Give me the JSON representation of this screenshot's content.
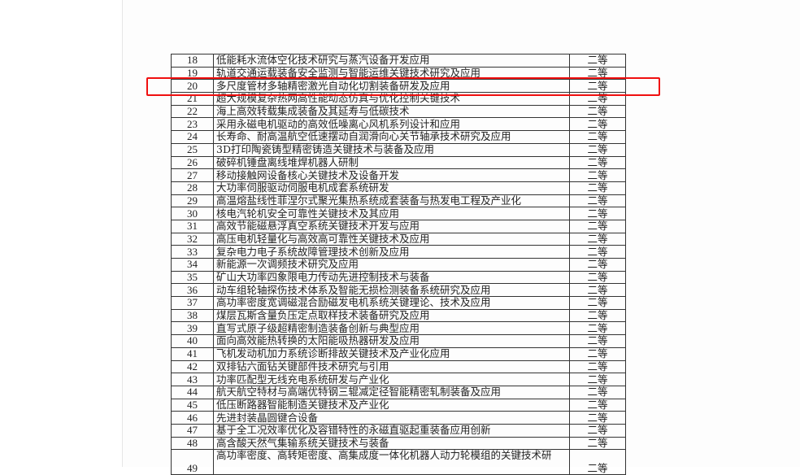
{
  "table": {
    "rows": [
      {
        "no": "18",
        "title": "低能耗水流体空化技术研究与蒸汽设备开发应用",
        "grade": "二等"
      },
      {
        "no": "19",
        "title": "轨道交通运载装备安全监测与智能运维关键技术研究及应用",
        "grade": "二等"
      },
      {
        "no": "20",
        "title": "多尺度管材多轴精密激光自动化切割装备研发及应用",
        "grade": "二等"
      },
      {
        "no": "21",
        "title": "超大规模复杂热网高性能动态仿真与优化控制关键技术",
        "grade": "二等"
      },
      {
        "no": "22",
        "title": "海上高效转载集成装备及其延寿与低碳技术",
        "grade": "二等"
      },
      {
        "no": "23",
        "title": "采用永磁电机驱动的高效低噪离心风机系列设计和应用",
        "grade": "二等"
      },
      {
        "no": "24",
        "title": "长寿命、耐高温航空低速摆动自润滑向心关节轴承技术研究及应用",
        "grade": "二等"
      },
      {
        "no": "25",
        "title": "3D打印陶瓷铸型精密铸造关键技术与装备及应用",
        "grade": "二等"
      },
      {
        "no": "26",
        "title": "破碎机锤盘离线堆焊机器人研制",
        "grade": "二等"
      },
      {
        "no": "27",
        "title": "移动接触网设备核心关键技术及设备开发",
        "grade": "二等"
      },
      {
        "no": "28",
        "title": "大功率伺服驱动伺服电机成套系统研发",
        "grade": "二等"
      },
      {
        "no": "29",
        "title": "高温熔盐线性菲涅尔式聚光集热系统成套装备与热发电工程及产业化",
        "grade": "二等"
      },
      {
        "no": "30",
        "title": "核电汽轮机安全可靠性关键技术及其应用",
        "grade": "二等"
      },
      {
        "no": "31",
        "title": "高效节能磁悬浮真空系统关键技术开发与应用",
        "grade": "二等"
      },
      {
        "no": "32",
        "title": "高压电机轻量化与高效高可靠性关键技术及应用",
        "grade": "二等"
      },
      {
        "no": "33",
        "title": "复杂电力电子系统故障管理技术创新及应用",
        "grade": "二等"
      },
      {
        "no": "34",
        "title": "新能源一次调频技术研究及应用",
        "grade": "二等"
      },
      {
        "no": "35",
        "title": "矿山大功率四象限电力传动先进控制技术与装备",
        "grade": "二等"
      },
      {
        "no": "36",
        "title": "动车组轮轴探伤技术体系及智能无损检测装备系统研究及应用",
        "grade": "二等"
      },
      {
        "no": "37",
        "title": "高功率密度宽调磁混合励磁发电机系统关键理论、技术及应用",
        "grade": "二等"
      },
      {
        "no": "38",
        "title": "煤层瓦斯含量负压定点取样技术装备研究及应用",
        "grade": "二等"
      },
      {
        "no": "39",
        "title": "直写式原子级超精密制造装备创新与典型应用",
        "grade": "二等"
      },
      {
        "no": "40",
        "title": "面向高效能热转换的太阳能吸热器研发及应用",
        "grade": "二等"
      },
      {
        "no": "41",
        "title": "飞机发动机加力系统诊断排故关键技术及产业化应用",
        "grade": "二等"
      },
      {
        "no": "42",
        "title": "双排钻六面钻关键部件技术研究与引用",
        "grade": "二等"
      },
      {
        "no": "43",
        "title": "功率匹配型无线充电系统研发与产业化",
        "grade": "二等"
      },
      {
        "no": "44",
        "title": "航天航空特材与高端优特钢三辊减定径智能精密轧制装备及应用",
        "grade": "二等"
      },
      {
        "no": "45",
        "title": "低压断路器智能制造关键技术及产业化",
        "grade": "二等"
      },
      {
        "no": "46",
        "title": "先进封装晶圆键合设备",
        "grade": "二等"
      },
      {
        "no": "47",
        "title": "基于全工况效率优化及容错特性的永磁直驱起重装备应用创新",
        "grade": "二等"
      },
      {
        "no": "48",
        "title": "高含酸天然气集输系统关键技术与装备",
        "grade": "二等"
      },
      {
        "no": "49",
        "title": "高功率密度、高转矩密度、高集成度一体化机器人动力轮模组的关键技术研",
        "grade": "二等"
      }
    ]
  },
  "highlight": {
    "row": "20",
    "color": "#f01010"
  }
}
